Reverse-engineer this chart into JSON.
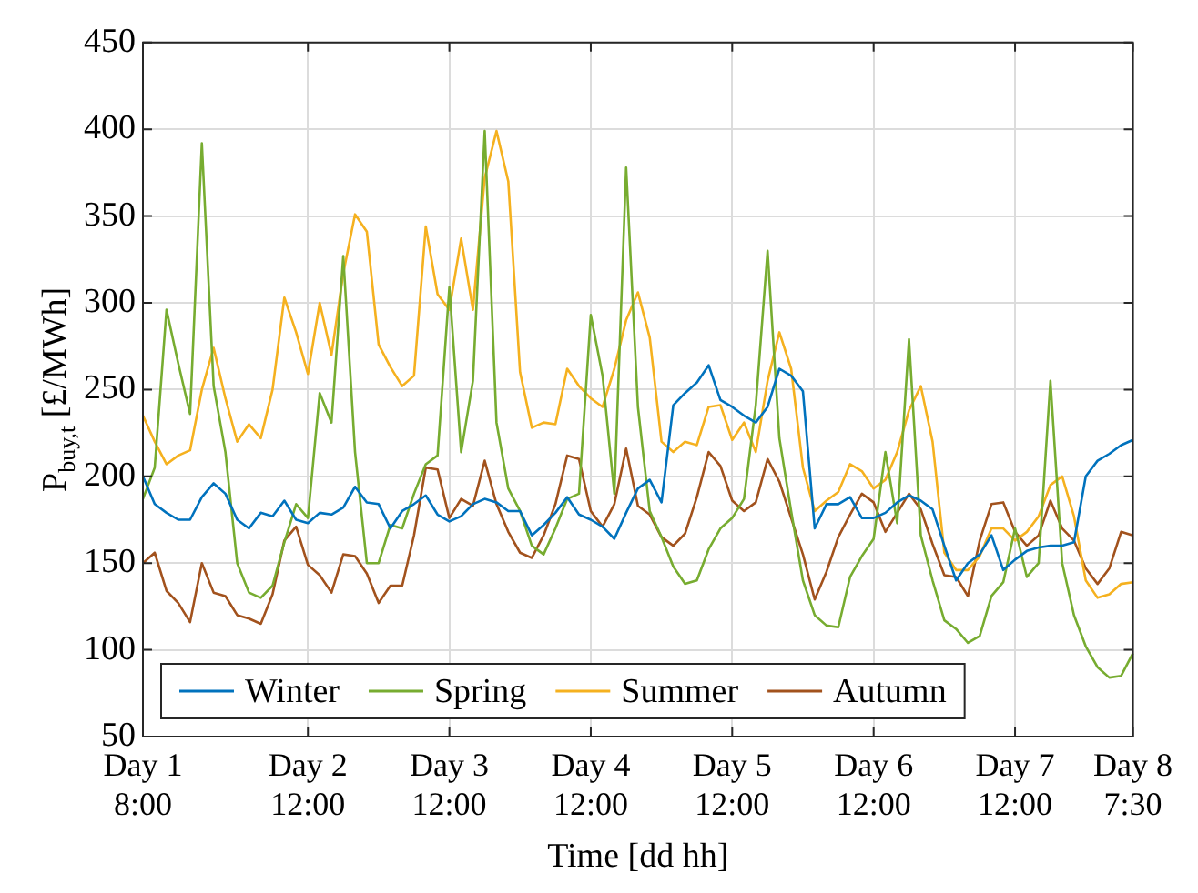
{
  "chart_data": {
    "type": "line",
    "xlabel": "Time [dd hh]",
    "ylabel": "P$_{buy,t}$ [£/MWh]",
    "categories": [
      "Day 1 8:00",
      null,
      null,
      null,
      null,
      null,
      null,
      null,
      null,
      null,
      null,
      null,
      null,
      null,
      "Day 2 12:00",
      null,
      null,
      null,
      null,
      null,
      null,
      null,
      null,
      null,
      null,
      null,
      "Day 3 12:00",
      null,
      null,
      null,
      null,
      null,
      null,
      null,
      null,
      null,
      null,
      null,
      "Day 4 12:00",
      null,
      null,
      null,
      null,
      null,
      null,
      null,
      null,
      null,
      null,
      null,
      "Day 5 12:00",
      null,
      null,
      null,
      null,
      null,
      null,
      null,
      null,
      null,
      null,
      null,
      "Day 6 12:00",
      null,
      null,
      null,
      null,
      null,
      null,
      null,
      null,
      null,
      null,
      null,
      "Day 7 12:00",
      null,
      null,
      null,
      null,
      null,
      null,
      null,
      null,
      null,
      "Day 8 7:30"
    ],
    "ylim": [
      50,
      450
    ],
    "yticks": [
      50,
      100,
      150,
      200,
      250,
      300,
      350,
      400,
      450
    ],
    "grid": true,
    "legend": "bottom",
    "marker": "none",
    "line_style": "solid",
    "series": [
      {
        "name": "Winter",
        "color": "#0072bd",
        "values": [
          200,
          184,
          179,
          175,
          175,
          188,
          196,
          190,
          175,
          170,
          179,
          177,
          186,
          175,
          173,
          179,
          178,
          182,
          194,
          185,
          184,
          170,
          180,
          184,
          189,
          178,
          174,
          177,
          184,
          187,
          185,
          180,
          180,
          166,
          172,
          179,
          188,
          178,
          175,
          171,
          164,
          179,
          193,
          198,
          185,
          241,
          248,
          254,
          264,
          244,
          240,
          235,
          231,
          240,
          262,
          258,
          249,
          170,
          184,
          184,
          188,
          176,
          176,
          179,
          185,
          189,
          186,
          181,
          160,
          140,
          150,
          155,
          166,
          146,
          152,
          157,
          159,
          160,
          160,
          162,
          200,
          209,
          213,
          218,
          221
        ]
      },
      {
        "name": "Spring",
        "color": "#77ac30",
        "values": [
          187,
          205,
          296,
          265,
          236,
          392,
          252,
          214,
          150,
          133,
          130,
          137,
          162,
          184,
          176,
          248,
          231,
          327,
          214,
          150,
          150,
          172,
          170,
          190,
          207,
          212,
          309,
          214,
          255,
          399,
          231,
          193,
          180,
          160,
          155,
          170,
          187,
          190,
          293,
          258,
          190,
          378,
          240,
          180,
          165,
          148,
          138,
          140,
          158,
          170,
          176,
          187,
          241,
          330,
          222,
          180,
          140,
          120,
          114,
          113,
          142,
          154,
          164,
          214,
          173,
          279,
          166,
          140,
          117,
          112,
          104,
          108,
          131,
          139,
          170,
          142,
          150,
          255,
          150,
          120,
          102,
          90,
          84,
          85,
          98
        ]
      },
      {
        "name": "Summer",
        "color": "#f5b11f",
        "values": [
          235,
          220,
          207,
          212,
          215,
          250,
          274,
          245,
          220,
          230,
          222,
          250,
          303,
          283,
          259,
          300,
          270,
          317,
          351,
          341,
          276,
          263,
          252,
          258,
          344,
          305,
          296,
          337,
          296,
          372,
          399,
          370,
          260,
          228,
          231,
          230,
          262,
          252,
          245,
          240,
          262,
          290,
          306,
          280,
          220,
          214,
          220,
          218,
          240,
          241,
          221,
          231,
          214,
          255,
          283,
          262,
          205,
          180,
          186,
          191,
          207,
          203,
          193,
          198,
          214,
          238,
          252,
          220,
          156,
          146,
          146,
          154,
          170,
          170,
          163,
          168,
          177,
          195,
          200,
          177,
          140,
          130,
          132,
          138,
          139
        ]
      },
      {
        "name": "Autumn",
        "color": "#a2521d",
        "values": [
          150,
          156,
          134,
          127,
          116,
          150,
          133,
          131,
          120,
          118,
          115,
          132,
          163,
          171,
          149,
          143,
          133,
          155,
          154,
          144,
          127,
          137,
          137,
          166,
          205,
          204,
          176,
          187,
          183,
          209,
          184,
          168,
          156,
          153,
          166,
          184,
          212,
          210,
          180,
          171,
          184,
          216,
          183,
          178,
          165,
          160,
          167,
          188,
          214,
          206,
          186,
          180,
          185,
          210,
          197,
          176,
          155,
          129,
          145,
          165,
          178,
          190,
          185,
          168,
          179,
          190,
          181,
          161,
          143,
          142,
          131,
          163,
          184,
          185,
          168,
          160,
          166,
          186,
          170,
          163,
          147,
          138,
          147,
          168,
          166
        ]
      }
    ]
  }
}
